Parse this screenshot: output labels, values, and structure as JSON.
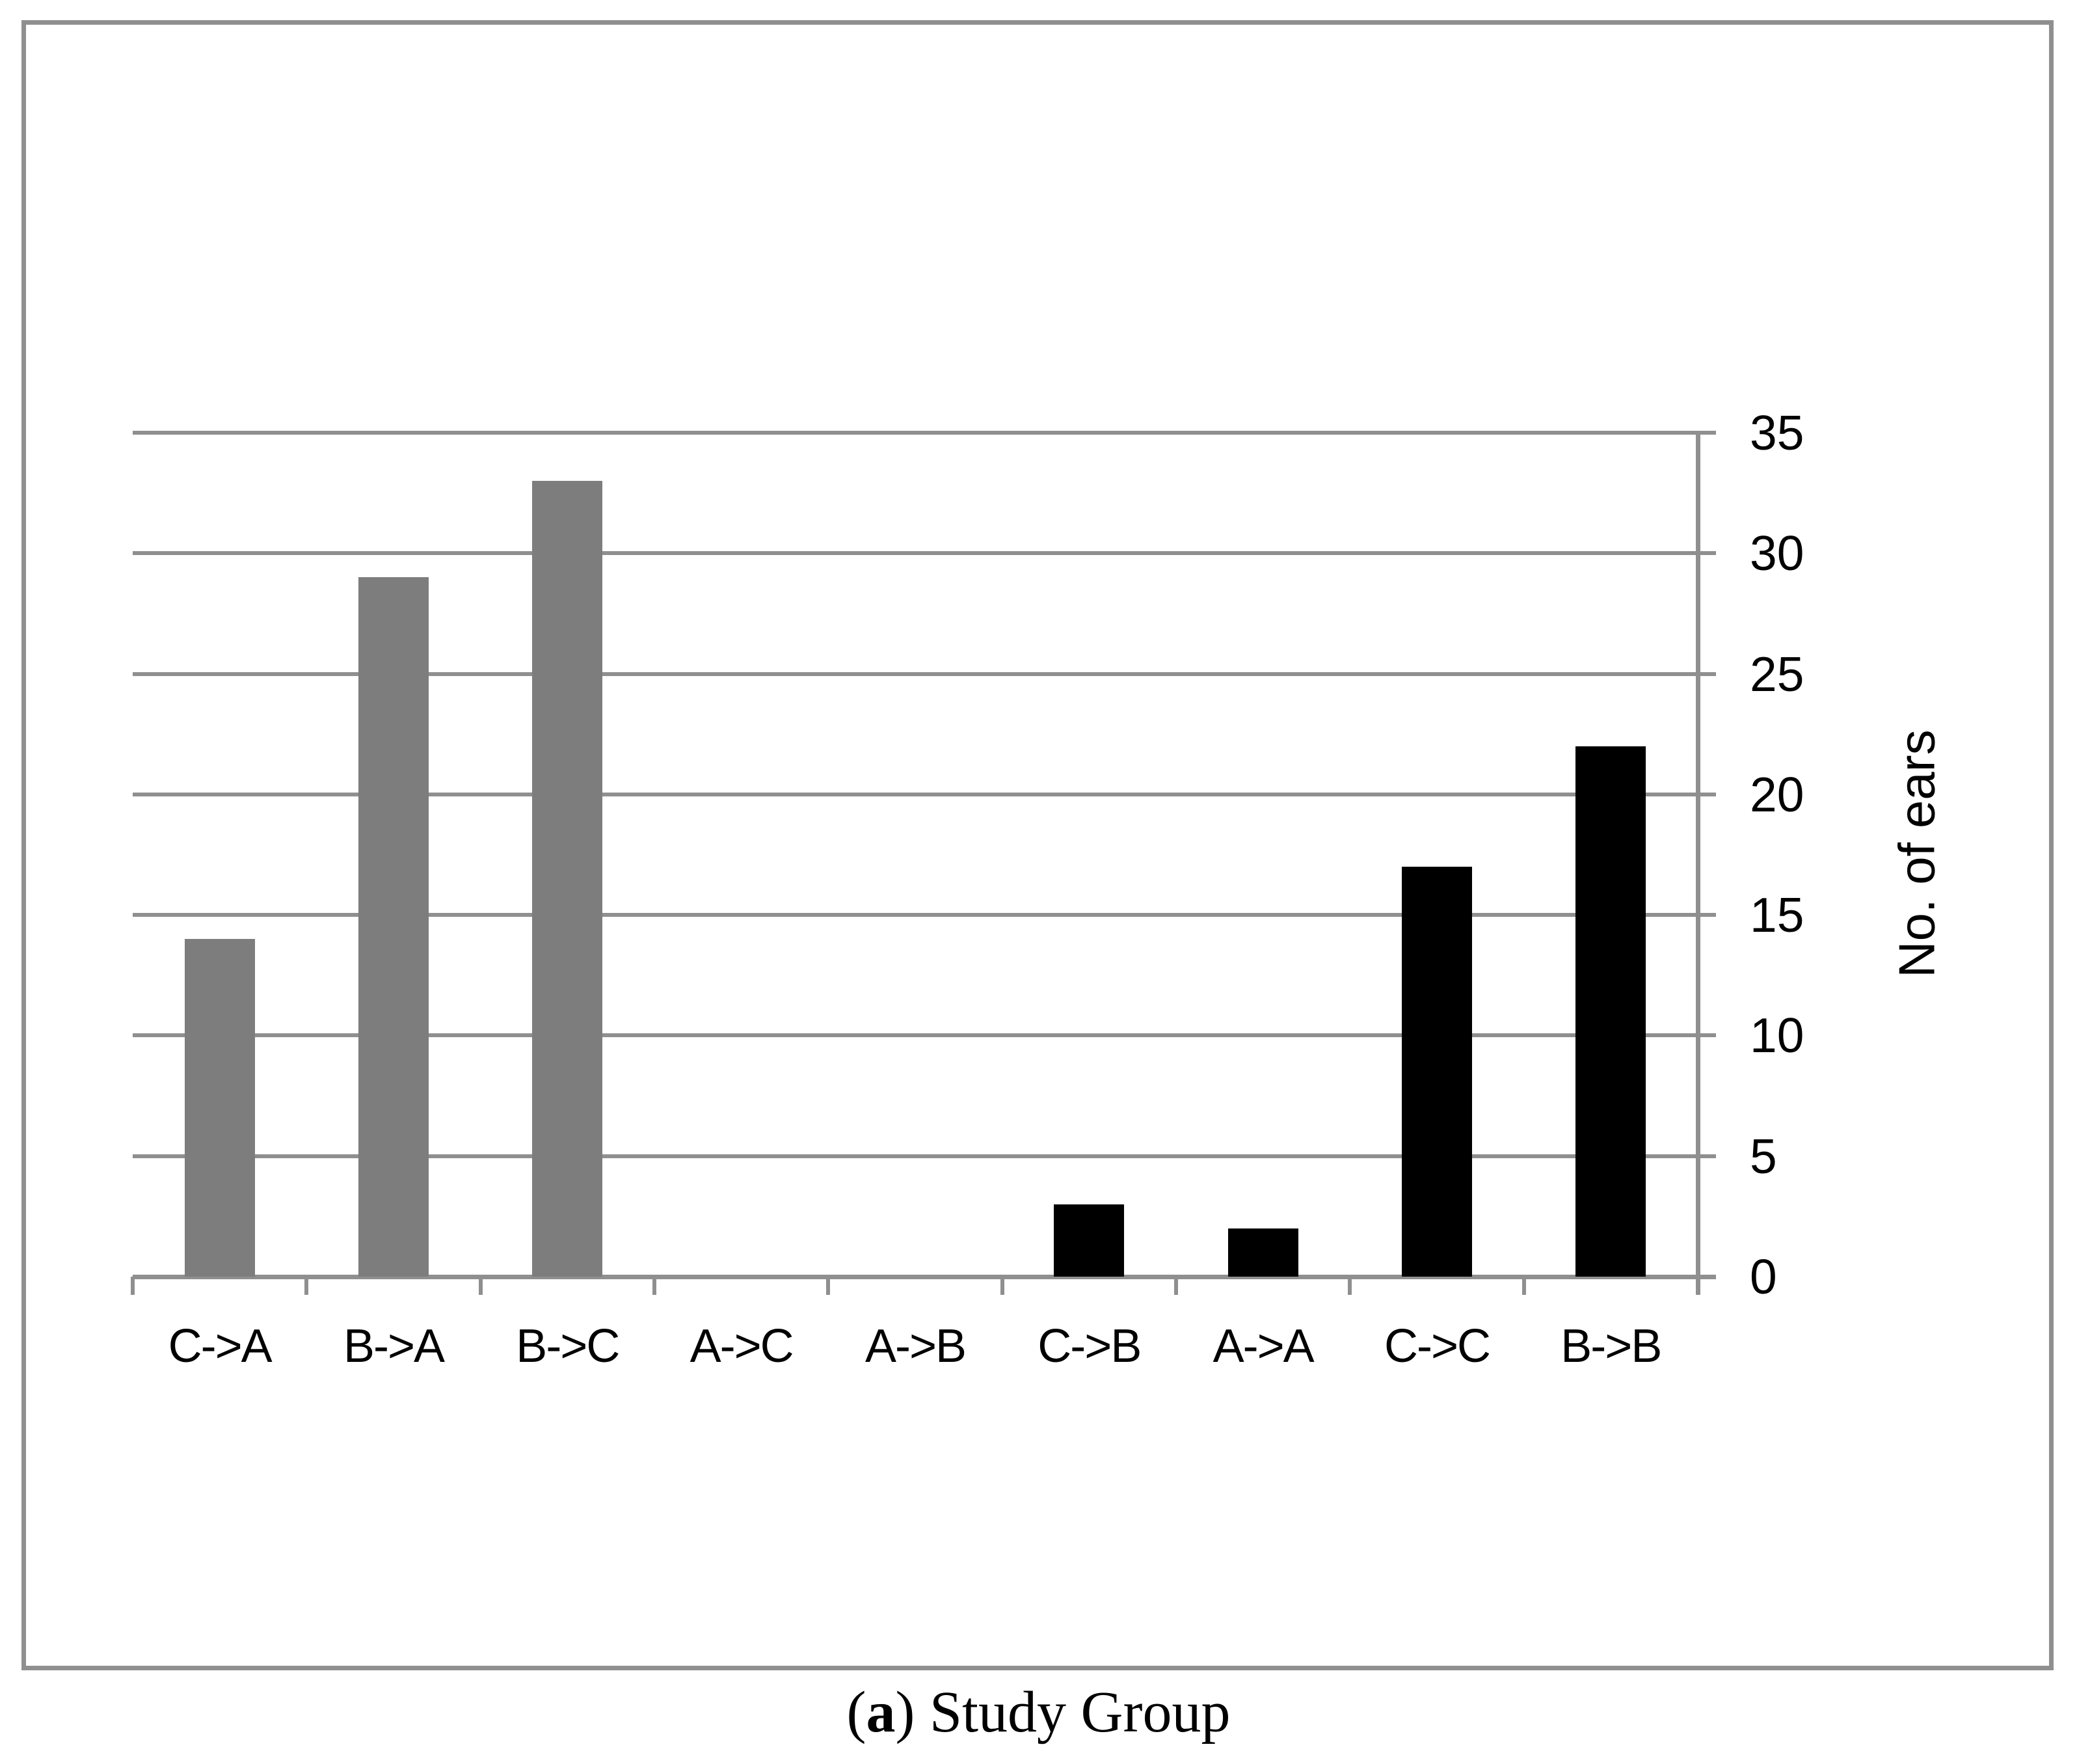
{
  "figure": {
    "caption": {
      "open_paren": "(",
      "label": "a",
      "close_paren": ")",
      "text": " Study Group"
    }
  },
  "colors": {
    "bar_gray": "#7d7d7d",
    "bar_black": "#000000",
    "line_gray": "#8f8f8f",
    "text": "#000000",
    "background": "#ffffff"
  },
  "chart_data": {
    "type": "bar",
    "categories": [
      "C->A",
      "B->A",
      "B->C",
      "A->C",
      "A->B",
      "C->B",
      "A->A",
      "C->C",
      "B->B"
    ],
    "values": [
      14,
      29,
      33,
      0,
      0,
      3,
      2,
      17,
      22
    ],
    "bar_colors": [
      "#7d7d7d",
      "#7d7d7d",
      "#7d7d7d",
      "#7d7d7d",
      "#7d7d7d",
      "#000000",
      "#000000",
      "#000000",
      "#000000"
    ],
    "title": "",
    "xlabel": "",
    "ylabel": "No. of ears",
    "ylim": [
      0,
      35
    ],
    "yticks": [
      0,
      5,
      10,
      15,
      20,
      25,
      30,
      35
    ],
    "y_axis_side": "right",
    "grid": true,
    "legend": "none"
  }
}
